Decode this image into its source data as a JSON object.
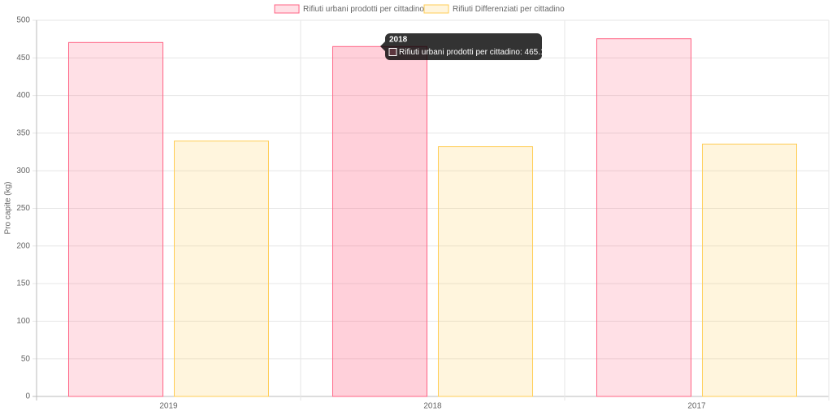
{
  "chart_data": {
    "type": "bar",
    "y_label": "Pro capite (kg)",
    "categories": [
      "2019",
      "2018",
      "2017"
    ],
    "series": [
      {
        "name": "Rifiuti urbani prodotti per cittadino",
        "color": "#ff6384",
        "values": [
          470.5,
          465.12,
          475.5
        ]
      },
      {
        "name": "Rifiuti Differenziati per cittadino",
        "color": "#ffcd56",
        "values": [
          339.5,
          332,
          335.5
        ]
      }
    ],
    "ylim": [
      0,
      500
    ],
    "yticks": [
      0,
      50,
      100,
      150,
      200,
      250,
      300,
      350,
      400,
      450,
      500
    ],
    "grid": true
  }
}
